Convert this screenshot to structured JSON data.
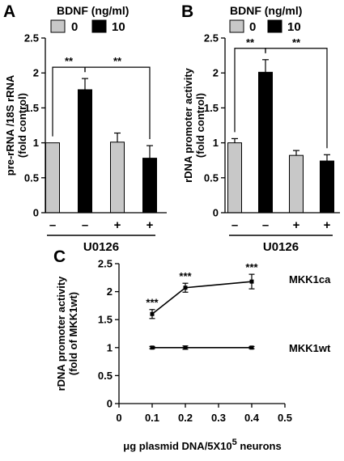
{
  "panels": {
    "A": "A",
    "B": "B",
    "C": "C"
  },
  "legend": {
    "title": "BDNF (ng/ml)",
    "items": [
      {
        "label": "0",
        "color": "#c8c8c8"
      },
      {
        "label": "10",
        "color": "#000000"
      }
    ]
  },
  "chart_data": [
    {
      "id": "A",
      "type": "bar",
      "ylabel": [
        "pre-rRNA /18S rRNA",
        "(fold control)"
      ],
      "ylim": [
        0,
        2.5
      ],
      "yticks": [
        0,
        0.5,
        1,
        1.5,
        2,
        2.5
      ],
      "ytick_labels": [
        "0",
        "0.5",
        "1",
        "1.5",
        "2",
        "2.5"
      ],
      "categories": [
        "–",
        "–",
        "+",
        "+"
      ],
      "treatment_label": "U0126",
      "values": [
        1.0,
        1.76,
        1.01,
        0.78
      ],
      "errors": [
        0.0,
        0.16,
        0.13,
        0.18
      ],
      "bar_colors": [
        "#c8c8c8",
        "#000000",
        "#c8c8c8",
        "#000000"
      ],
      "significance": [
        {
          "from": 0,
          "to": 1,
          "label": "**"
        },
        {
          "from": 1,
          "to": 3,
          "label": "**"
        }
      ]
    },
    {
      "id": "B",
      "type": "bar",
      "ylabel": [
        "rDNA promoter activity",
        "(fold control)"
      ],
      "ylim": [
        0,
        2.5
      ],
      "yticks": [
        0,
        0.5,
        1,
        1.5,
        2,
        2.5
      ],
      "ytick_labels": [
        "0",
        "0.5",
        "1",
        "1.5",
        "2",
        "2.5"
      ],
      "categories": [
        "–",
        "–",
        "+",
        "+"
      ],
      "treatment_label": "U0126",
      "values": [
        1.0,
        2.01,
        0.82,
        0.74
      ],
      "errors": [
        0.06,
        0.18,
        0.07,
        0.09
      ],
      "bar_colors": [
        "#c8c8c8",
        "#000000",
        "#c8c8c8",
        "#000000"
      ],
      "significance": [
        {
          "from": 0,
          "to": 1,
          "label": "**"
        },
        {
          "from": 1,
          "to": 3,
          "label": "**"
        }
      ]
    },
    {
      "id": "C",
      "type": "line",
      "ylabel": [
        "rDNA promoter activity",
        "(fold of MKK1wt)"
      ],
      "xlabel_parts": [
        "μg plasmid DNA/5X10",
        "5",
        " neurons"
      ],
      "xlim": [
        0,
        0.5
      ],
      "ylim": [
        0,
        2.5
      ],
      "xticks": [
        0,
        0.1,
        0.2,
        0.3,
        0.4,
        0.5
      ],
      "xtick_labels": [
        "0",
        "0.1",
        "0.2",
        "0.3",
        "0.4",
        "0.5"
      ],
      "yticks": [
        0,
        0.5,
        1,
        1.5,
        2,
        2.5
      ],
      "ytick_labels": [
        "0",
        "0.5",
        "1",
        "1.5",
        "2",
        "2.5"
      ],
      "series": [
        {
          "name": "MKK1ca",
          "x": [
            0.1,
            0.2,
            0.4
          ],
          "y": [
            1.6,
            2.07,
            2.18
          ],
          "errors": [
            0.08,
            0.08,
            0.13
          ],
          "significance": [
            "***",
            "***",
            "***"
          ]
        },
        {
          "name": "MKK1wt",
          "x": [
            0.1,
            0.2,
            0.4
          ],
          "y": [
            1.0,
            1.0,
            1.0
          ],
          "errors": [
            0.02,
            0.03,
            0.02
          ],
          "significance": []
        }
      ]
    }
  ]
}
